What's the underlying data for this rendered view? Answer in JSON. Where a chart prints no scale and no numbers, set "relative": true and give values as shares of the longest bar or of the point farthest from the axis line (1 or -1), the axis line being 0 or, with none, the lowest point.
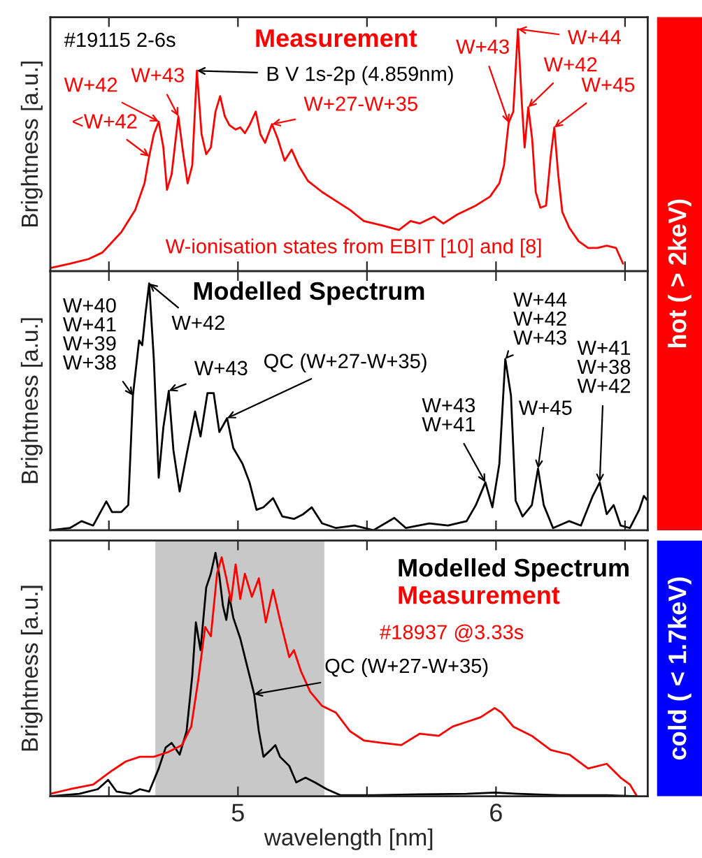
{
  "chart_data": [
    {
      "type": "line",
      "title": "Measurement",
      "ylabel": "Brightness [a.u.]",
      "relative": true,
      "tick_labels": false,
      "xlim": [
        4.273,
        6.588
      ],
      "xticks": [
        {
          "value": 4.5,
          "label": null
        },
        {
          "value": 5,
          "label": null
        },
        {
          "value": 5.5,
          "label": null
        },
        {
          "value": 6,
          "label": null
        },
        {
          "value": 6.5,
          "label": null
        }
      ],
      "series": [
        {
          "color": "#ff0000",
          "x": [
            4.273,
            4.349,
            4.421,
            4.475,
            4.548,
            4.602,
            4.638,
            4.656,
            4.674,
            4.693,
            4.711,
            4.725,
            4.743,
            4.769,
            4.787,
            4.805,
            4.823,
            4.841,
            4.859,
            4.877,
            4.895,
            4.913,
            4.931,
            4.949,
            4.967,
            4.991,
            5.009,
            5.027,
            5.045,
            5.069,
            5.087,
            5.105,
            5.132,
            5.154,
            5.181,
            5.208,
            5.235,
            5.271,
            5.326,
            5.38,
            5.434,
            5.488,
            5.561,
            5.624,
            5.669,
            5.705,
            5.76,
            5.796,
            5.85,
            5.922,
            5.977,
            6.013,
            6.031,
            6.049,
            6.067,
            6.085,
            6.1,
            6.111,
            6.125,
            6.14,
            6.154,
            6.172,
            6.194,
            6.212,
            6.226,
            6.241,
            6.257,
            6.284,
            6.32,
            6.357,
            6.393,
            6.429,
            6.465,
            6.492
          ],
          "values": [
            0.013,
            0.031,
            0.05,
            0.077,
            0.161,
            0.253,
            0.363,
            0.474,
            0.566,
            0.618,
            0.511,
            0.336,
            0.4,
            0.64,
            0.493,
            0.363,
            0.437,
            0.828,
            0.566,
            0.483,
            0.511,
            0.659,
            0.723,
            0.64,
            0.603,
            0.585,
            0.594,
            0.57,
            0.603,
            0.659,
            0.566,
            0.53,
            0.607,
            0.548,
            0.456,
            0.502,
            0.437,
            0.373,
            0.327,
            0.29,
            0.253,
            0.207,
            0.188,
            0.17,
            0.207,
            0.197,
            0.225,
            0.197,
            0.234,
            0.271,
            0.308,
            0.363,
            0.437,
            0.613,
            0.659,
            1,
            0.696,
            0.511,
            0.677,
            0.548,
            0.327,
            0.262,
            0.271,
            0.474,
            0.594,
            0.4,
            0.244,
            0.179,
            0.124,
            0.096,
            0.096,
            0.105,
            0.096,
            0.031
          ]
        }
      ],
      "annotations": [
        "#19115 2-6s",
        {
          "text": "W+42",
          "x": 4.693,
          "y": 0.618
        },
        {
          "text": "<W+42",
          "x": 4.656,
          "y": 0.474
        },
        {
          "text": "W+43",
          "x": 4.769,
          "y": 0.64
        },
        {
          "text": "B V 1s-2p (4.859nm)",
          "x": 4.841,
          "y": 0.828
        },
        {
          "text": "W+27-W+35",
          "x": 5.132,
          "y": 0.607
        },
        {
          "text": "W+43",
          "x": 6.049,
          "y": 0.613
        },
        {
          "text": "W+44",
          "x": 6.085,
          "y": 1
        },
        {
          "text": "W+42",
          "x": 6.125,
          "y": 0.677
        },
        {
          "text": "W+45",
          "x": 6.226,
          "y": 0.594
        },
        "W-ionisation states from EBIT [10] and [8]",
        "hot ( > 2keV)"
      ]
    },
    {
      "type": "line",
      "title": "Modelled Spectrum",
      "ylabel": "Brightness [a.u.]",
      "relative": true,
      "tick_labels": false,
      "xlim": [
        4.273,
        6.588
      ],
      "xticks": [
        {
          "value": 4.5,
          "label": null
        },
        {
          "value": 5,
          "label": null
        },
        {
          "value": 5.5,
          "label": null
        },
        {
          "value": 6,
          "label": null
        },
        {
          "value": 6.5,
          "label": null
        }
      ],
      "series": [
        {
          "color": "#000000",
          "x": [
            4.273,
            4.349,
            4.394,
            4.439,
            4.49,
            4.512,
            4.548,
            4.575,
            4.593,
            4.617,
            4.629,
            4.642,
            4.656,
            4.674,
            4.693,
            4.711,
            4.732,
            4.75,
            4.774,
            4.801,
            4.834,
            4.855,
            4.882,
            4.906,
            4.928,
            4.958,
            4.982,
            5.018,
            5.045,
            5.072,
            5.099,
            5.136,
            5.172,
            5.217,
            5.253,
            5.286,
            5.326,
            5.38,
            5.452,
            5.525,
            5.606,
            5.651,
            5.742,
            5.814,
            5.886,
            5.922,
            5.959,
            5.986,
            6.013,
            6.036,
            6.058,
            6.076,
            6.103,
            6.139,
            6.163,
            6.185,
            6.221,
            6.284,
            6.329,
            6.375,
            6.402,
            6.429,
            6.456,
            6.483,
            6.519,
            6.555,
            6.573,
            6.588
          ],
          "values": [
            0,
            0.009,
            0.037,
            0.019,
            0.117,
            0.074,
            0.074,
            0.102,
            0.546,
            0.769,
            0.75,
            0.88,
            1,
            0.694,
            0.213,
            0.417,
            0.565,
            0.324,
            0.157,
            0.306,
            0.481,
            0.38,
            0.556,
            0.556,
            0.398,
            0.454,
            0.333,
            0.269,
            0.194,
            0.083,
            0.093,
            0.13,
            0.056,
            0.046,
            0.065,
            0.093,
            0.028,
            0.009,
            0.019,
            0,
            0.05,
            0.009,
            0.028,
            0.019,
            0.037,
            0.102,
            0.194,
            0.093,
            0.269,
            0.694,
            0.546,
            0.12,
            0.056,
            0.102,
            0.25,
            0.102,
            0.009,
            0.037,
            0.019,
            0.139,
            0.194,
            0.065,
            0.102,
            0.019,
            0.009,
            0.083,
            0.139,
            0.12
          ]
        }
      ],
      "annotations": [
        {
          "text": "W+40\nW+41\nW+39\nW+38",
          "x": 4.593,
          "y": 0.546
        },
        {
          "text": "W+42",
          "x": 4.656,
          "y": 1
        },
        {
          "text": "W+43",
          "x": 4.732,
          "y": 0.565
        },
        {
          "text": "QC (W+27-W+35)",
          "x": 4.958,
          "y": 0.454
        },
        {
          "text": "W+43\nW+41",
          "x": 5.959,
          "y": 0.194
        },
        {
          "text": "W+44\nW+42\nW+43",
          "x": 6.036,
          "y": 0.694
        },
        {
          "text": "W+45",
          "x": 6.163,
          "y": 0.25
        },
        {
          "text": "W+41\nW+38\nW+42",
          "x": 6.402,
          "y": 0.194
        }
      ]
    },
    {
      "type": "line",
      "xlabel": "wavelength [nm]",
      "ylabel": "Brightness [a.u.]",
      "relative": true,
      "tick_labels": "x",
      "legend": "top right",
      "xlim": [
        4.273,
        6.588
      ],
      "xticks": [
        {
          "value": 4.5,
          "label": null
        },
        5,
        {
          "value": 5.5,
          "label": null
        },
        6,
        {
          "value": 6.5,
          "label": null
        }
      ],
      "bands": [
        {
          "axis": "x",
          "from": 4.68,
          "to": 5.335,
          "color": "#c8c8c8"
        }
      ],
      "series": [
        {
          "name": "Modelled Spectrum",
          "color": "#000000",
          "x": [
            4.273,
            4.385,
            4.457,
            4.497,
            4.53,
            4.584,
            4.62,
            4.656,
            4.693,
            4.72,
            4.743,
            4.774,
            4.801,
            4.823,
            4.837,
            4.855,
            4.877,
            4.895,
            4.913,
            4.928,
            4.942,
            4.955,
            4.967,
            4.982,
            5.009,
            5.036,
            5.063,
            5.081,
            5.099,
            5.127,
            5.145,
            5.163,
            5.199,
            5.226,
            5.262,
            5.298,
            5.344,
            5.398,
            5.525,
            5.705,
            5.886,
            5.995,
            6.085,
            6.248,
            6.429,
            6.546
          ],
          "values": [
            0,
            0.01,
            0.029,
            0.067,
            0.019,
            0.01,
            0.029,
            0.019,
            0.114,
            0.2,
            0.219,
            0.171,
            0.267,
            0.495,
            0.714,
            0.6,
            0.857,
            0.914,
            1,
            0.905,
            0.781,
            0.724,
            0.819,
            0.733,
            0.648,
            0.533,
            0.419,
            0.267,
            0.162,
            0.19,
            0.21,
            0.162,
            0.124,
            0.057,
            0.076,
            0.057,
            0.029,
            0.004,
            0.004,
            0.008,
            0.01,
            0.015,
            0.01,
            0.004,
            0.004,
            0
          ]
        },
        {
          "name": "Measurement",
          "color": "#ff0000",
          "x": [
            4.273,
            4.349,
            4.439,
            4.512,
            4.566,
            4.62,
            4.674,
            4.729,
            4.783,
            4.819,
            4.846,
            4.873,
            4.895,
            4.919,
            4.937,
            4.955,
            4.973,
            4.991,
            5.009,
            5.027,
            5.054,
            5.081,
            5.108,
            5.136,
            5.163,
            5.199,
            5.217,
            5.244,
            5.28,
            5.326,
            5.38,
            5.434,
            5.488,
            5.561,
            5.633,
            5.705,
            5.778,
            5.832,
            5.886,
            5.94,
            5.995,
            6.022,
            6.067,
            6.139,
            6.212,
            6.284,
            6.357,
            6.429,
            6.483,
            6.519,
            6.546
          ],
          "values": [
            0.01,
            0.029,
            0.048,
            0.105,
            0.143,
            0.162,
            0.162,
            0.181,
            0.21,
            0.286,
            0.476,
            0.695,
            0.657,
            0.914,
            0.981,
            0.895,
            0.8,
            0.952,
            0.81,
            0.914,
            0.819,
            0.895,
            0.714,
            0.848,
            0.724,
            0.571,
            0.6,
            0.514,
            0.429,
            0.371,
            0.343,
            0.267,
            0.229,
            0.219,
            0.21,
            0.257,
            0.248,
            0.286,
            0.305,
            0.324,
            0.362,
            0.343,
            0.286,
            0.248,
            0.19,
            0.171,
            0.114,
            0.133,
            0.076,
            0.048,
            0
          ]
        }
      ],
      "annotations": [
        "#18937 @3.33s",
        {
          "text": "QC (W+27-W+35)",
          "x": 5.063,
          "y": 0.419
        },
        "cold ( < 1.7keV)"
      ]
    }
  ]
}
